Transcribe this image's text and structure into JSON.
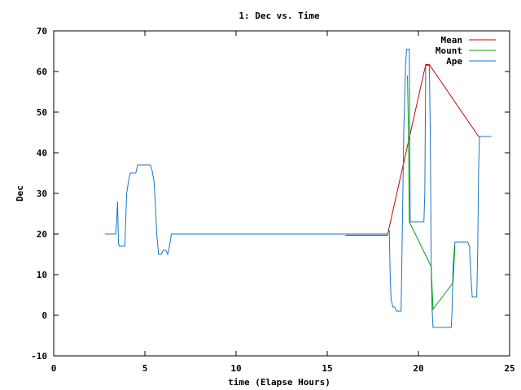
{
  "chart_data": {
    "type": "line",
    "title": "1: Dec vs. Time",
    "xlabel": "time (Elapse Hours)",
    "ylabel": "Dec",
    "xlim": [
      0,
      25
    ],
    "ylim": [
      -10,
      70
    ],
    "xticks": [
      0,
      5,
      10,
      15,
      20,
      25
    ],
    "yticks": [
      -10,
      0,
      10,
      20,
      30,
      40,
      50,
      60,
      70
    ],
    "xtick_labels": [
      "0",
      "5",
      "10",
      "15",
      "20",
      "25"
    ],
    "ytick_labels": [
      "-10",
      "0",
      "10",
      "20",
      "30",
      "40",
      "50",
      "60",
      "70"
    ],
    "grid": false,
    "legend_position": "top-right",
    "series": [
      {
        "name": "Mean",
        "color": "#cc0000",
        "points": [
          [
            16.0,
            19.7
          ],
          [
            18.3,
            19.7
          ],
          [
            20.4,
            61.7
          ],
          [
            20.6,
            61.7
          ],
          [
            23.3,
            44.0
          ],
          [
            24.0,
            44.0
          ]
        ]
      },
      {
        "name": "Mount",
        "color": "#00a000",
        "points": [
          [
            19.4,
            59.0
          ],
          [
            19.45,
            46.0
          ],
          [
            19.5,
            23.0
          ],
          [
            20.7,
            12.0
          ],
          [
            20.8,
            1.5
          ],
          [
            21.9,
            8.0
          ],
          [
            22.0,
            17.0
          ]
        ]
      },
      {
        "name": "Ape",
        "color": "#1a75c8",
        "points": [
          [
            2.8,
            20.0
          ],
          [
            3.3,
            20.0
          ],
          [
            3.4,
            20.0
          ],
          [
            3.45,
            23.0
          ],
          [
            3.5,
            28.0
          ],
          [
            3.55,
            17.5
          ],
          [
            3.6,
            17.0
          ],
          [
            3.9,
            17.0
          ],
          [
            4.0,
            30.0
          ],
          [
            4.1,
            33.0
          ],
          [
            4.2,
            35.0
          ],
          [
            4.5,
            35.0
          ],
          [
            4.6,
            37.0
          ],
          [
            5.3,
            37.0
          ],
          [
            5.4,
            35.5
          ],
          [
            5.5,
            33.0
          ],
          [
            5.6,
            25.0
          ],
          [
            5.65,
            20.0
          ],
          [
            5.75,
            15.0
          ],
          [
            5.9,
            15.0
          ],
          [
            6.0,
            16.0
          ],
          [
            6.15,
            16.0
          ],
          [
            6.25,
            15.0
          ],
          [
            6.35,
            17.0
          ],
          [
            6.45,
            20.0
          ],
          [
            16.0,
            20.0
          ],
          [
            18.3,
            20.0
          ],
          [
            18.4,
            21.0
          ],
          [
            18.45,
            10.0
          ],
          [
            18.5,
            4.0
          ],
          [
            18.6,
            2.0
          ],
          [
            18.7,
            2.0
          ],
          [
            18.8,
            1.0
          ],
          [
            19.05,
            1.0
          ],
          [
            19.1,
            16.0
          ],
          [
            19.2,
            46.0
          ],
          [
            19.3,
            62.0
          ],
          [
            19.35,
            65.5
          ],
          [
            19.5,
            65.5
          ],
          [
            19.55,
            23.0
          ],
          [
            20.3,
            23.0
          ],
          [
            20.35,
            30.0
          ],
          [
            20.4,
            61.5
          ],
          [
            20.6,
            61.5
          ],
          [
            20.65,
            45.0
          ],
          [
            20.7,
            12.0
          ],
          [
            20.75,
            1.5
          ],
          [
            20.8,
            -3.0
          ],
          [
            21.8,
            -3.0
          ],
          [
            21.85,
            2.0
          ],
          [
            21.9,
            12.0
          ],
          [
            22.0,
            18.0
          ],
          [
            22.7,
            18.0
          ],
          [
            22.8,
            17.0
          ],
          [
            22.85,
            12.0
          ],
          [
            22.9,
            8.0
          ],
          [
            22.95,
            4.5
          ],
          [
            23.2,
            4.5
          ],
          [
            23.25,
            16.0
          ],
          [
            23.3,
            36.0
          ],
          [
            23.35,
            44.0
          ],
          [
            24.0,
            44.0
          ]
        ]
      }
    ]
  }
}
